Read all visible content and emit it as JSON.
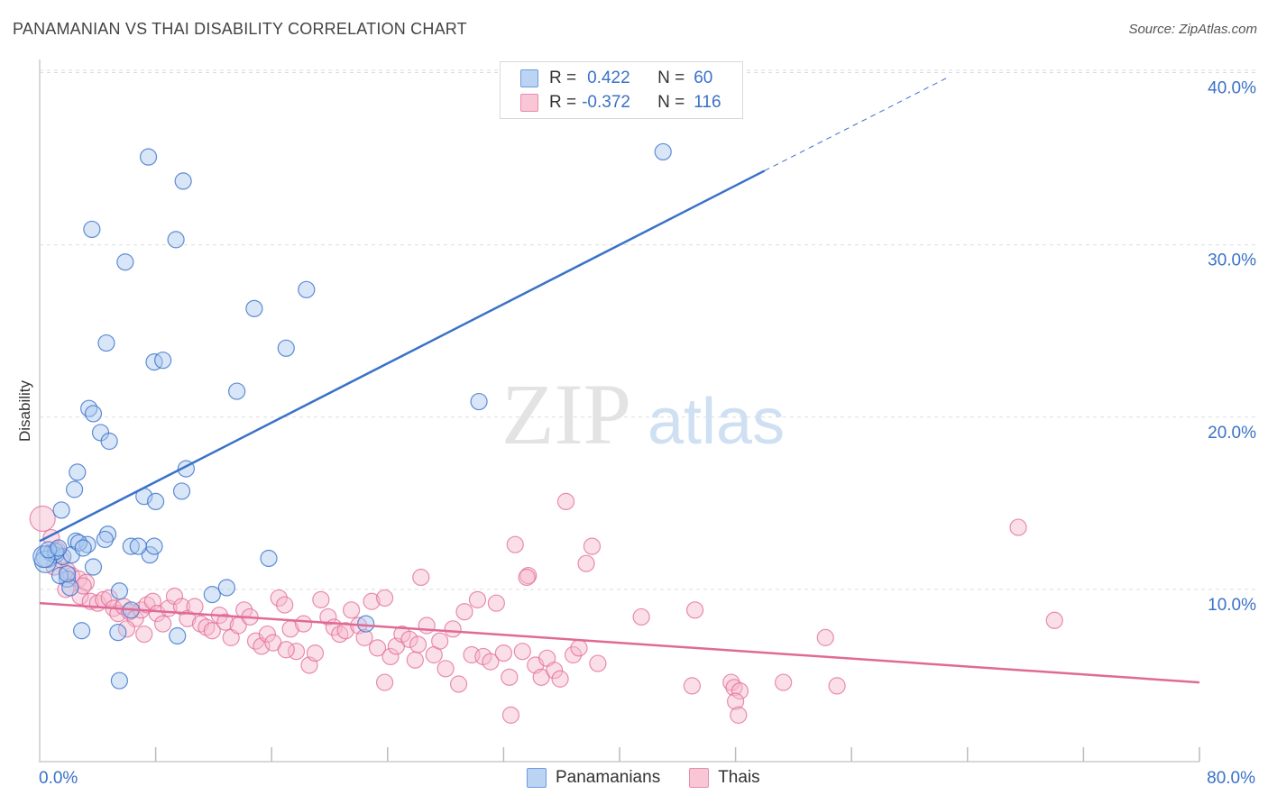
{
  "title": "PANAMANIAN VS THAI DISABILITY CORRELATION CHART",
  "source": "Source: ZipAtlas.com",
  "watermark": {
    "zip": "ZIP",
    "atlas": "atlas"
  },
  "legend": {
    "rows": [
      {
        "r_label": "R =",
        "r_value": "0.422",
        "n_label": "N =",
        "n_value": "60"
      },
      {
        "r_label": "R =",
        "r_value": "-0.372",
        "n_label": "N =",
        "n_value": "116"
      }
    ]
  },
  "bottom_legend": {
    "series1": "Panamanians",
    "series2": "Thais"
  },
  "colors": {
    "blue": "#3a72c8",
    "blue_fill": "#a9c8f0",
    "pink": "#e06a95",
    "pink_fill": "#f6b8cc",
    "grid": "#dddddd"
  },
  "chart_data": {
    "type": "scatter",
    "title": "PANAMANIAN VS THAI DISABILITY CORRELATION CHART",
    "xlabel": "",
    "ylabel": "Disability",
    "xlim": [
      0,
      80
    ],
    "ylim": [
      0,
      40
    ],
    "x_tick_labels": [
      "0.0%",
      "80.0%"
    ],
    "y_ticks": [
      10,
      20,
      30,
      40
    ],
    "y_tick_labels": [
      "10.0%",
      "20.0%",
      "30.0%",
      "40.0%"
    ],
    "grid": true,
    "legend_position": "top-center",
    "series": [
      {
        "name": "Panamanians",
        "color": "#3a72c8",
        "R": 0.422,
        "N": 60,
        "trend": {
          "x": [
            0,
            50
          ],
          "y": [
            12.8,
            34.3
          ],
          "dashed_to": [
            62.6,
            39.7
          ]
        },
        "points": [
          [
            7.5,
            35.1
          ],
          [
            9.9,
            33.7
          ],
          [
            3.6,
            30.9
          ],
          [
            9.4,
            30.3
          ],
          [
            5.9,
            29.0
          ],
          [
            18.4,
            27.4
          ],
          [
            14.8,
            26.3
          ],
          [
            4.6,
            24.3
          ],
          [
            17.0,
            24.0
          ],
          [
            7.9,
            23.2
          ],
          [
            8.5,
            23.3
          ],
          [
            13.6,
            21.5
          ],
          [
            3.4,
            20.5
          ],
          [
            3.7,
            20.2
          ],
          [
            4.2,
            19.1
          ],
          [
            4.8,
            18.6
          ],
          [
            10.1,
            17.0
          ],
          [
            2.6,
            16.8
          ],
          [
            2.4,
            15.8
          ],
          [
            7.2,
            15.4
          ],
          [
            8.0,
            15.1
          ],
          [
            9.8,
            15.7
          ],
          [
            1.5,
            14.6
          ],
          [
            4.7,
            13.2
          ],
          [
            2.5,
            12.8
          ],
          [
            3.3,
            12.6
          ],
          [
            4.5,
            12.9
          ],
          [
            6.3,
            12.5
          ],
          [
            7.6,
            12.0
          ],
          [
            7.9,
            12.5
          ],
          [
            0.5,
            11.9
          ],
          [
            0.8,
            12.1
          ],
          [
            1.1,
            12.0
          ],
          [
            1.6,
            11.9
          ],
          [
            2.2,
            12.0
          ],
          [
            3.7,
            11.3
          ],
          [
            1.9,
            10.6
          ],
          [
            1.4,
            10.8
          ],
          [
            0.4,
            11.6
          ],
          [
            2.1,
            10.1
          ],
          [
            5.5,
            9.9
          ],
          [
            11.9,
            9.7
          ],
          [
            12.9,
            10.1
          ],
          [
            15.8,
            11.8
          ],
          [
            6.3,
            8.8
          ],
          [
            2.9,
            7.6
          ],
          [
            5.4,
            7.5
          ],
          [
            9.5,
            7.3
          ],
          [
            5.5,
            4.7
          ],
          [
            1.1,
            12.2
          ],
          [
            0.3,
            11.9
          ],
          [
            0.6,
            12.3
          ],
          [
            1.3,
            12.4
          ],
          [
            2.7,
            12.7
          ],
          [
            3.0,
            12.4
          ],
          [
            6.8,
            12.5
          ],
          [
            43.0,
            35.4
          ],
          [
            30.3,
            20.9
          ],
          [
            22.5,
            8.0
          ],
          [
            1.9,
            10.9
          ]
        ]
      },
      {
        "name": "Thais",
        "color": "#e06a95",
        "R": -0.372,
        "N": 116,
        "trend": {
          "x": [
            0,
            80
          ],
          "y": [
            9.2,
            4.6
          ]
        },
        "points": [
          [
            0.2,
            14.1
          ],
          [
            0.8,
            13.0
          ],
          [
            1.2,
            12.3
          ],
          [
            1.5,
            11.7
          ],
          [
            1.9,
            11.1
          ],
          [
            2.2,
            10.8
          ],
          [
            2.7,
            10.6
          ],
          [
            3.2,
            10.4
          ],
          [
            1.8,
            10.0
          ],
          [
            2.8,
            9.6
          ],
          [
            3.5,
            9.3
          ],
          [
            4.0,
            9.2
          ],
          [
            4.4,
            9.4
          ],
          [
            4.8,
            9.5
          ],
          [
            5.1,
            8.9
          ],
          [
            5.4,
            8.6
          ],
          [
            5.8,
            9.0
          ],
          [
            6.2,
            8.7
          ],
          [
            6.6,
            8.3
          ],
          [
            7.0,
            8.8
          ],
          [
            7.4,
            9.1
          ],
          [
            7.8,
            9.3
          ],
          [
            8.1,
            8.6
          ],
          [
            8.5,
            8.0
          ],
          [
            8.9,
            8.9
          ],
          [
            9.3,
            9.6
          ],
          [
            9.8,
            9.0
          ],
          [
            10.2,
            8.3
          ],
          [
            10.7,
            9.0
          ],
          [
            11.1,
            8.0
          ],
          [
            11.5,
            7.8
          ],
          [
            11.9,
            7.6
          ],
          [
            12.4,
            8.5
          ],
          [
            12.8,
            8.1
          ],
          [
            13.2,
            7.2
          ],
          [
            13.7,
            7.9
          ],
          [
            14.1,
            8.8
          ],
          [
            14.5,
            8.4
          ],
          [
            14.9,
            7.0
          ],
          [
            15.3,
            6.7
          ],
          [
            15.7,
            7.4
          ],
          [
            16.1,
            6.9
          ],
          [
            16.5,
            9.5
          ],
          [
            16.9,
            9.1
          ],
          [
            17.3,
            7.7
          ],
          [
            17.7,
            6.4
          ],
          [
            18.2,
            8.0
          ],
          [
            18.6,
            5.6
          ],
          [
            19.0,
            6.3
          ],
          [
            19.4,
            9.4
          ],
          [
            19.9,
            8.4
          ],
          [
            20.3,
            7.8
          ],
          [
            20.7,
            7.4
          ],
          [
            21.1,
            7.6
          ],
          [
            21.5,
            8.8
          ],
          [
            22.0,
            7.9
          ],
          [
            22.4,
            7.2
          ],
          [
            22.9,
            9.3
          ],
          [
            23.3,
            6.6
          ],
          [
            23.8,
            9.5
          ],
          [
            24.2,
            6.1
          ],
          [
            24.6,
            6.7
          ],
          [
            25.0,
            7.4
          ],
          [
            25.5,
            7.1
          ],
          [
            25.9,
            5.9
          ],
          [
            26.3,
            10.7
          ],
          [
            26.7,
            7.9
          ],
          [
            27.2,
            6.2
          ],
          [
            27.6,
            7.0
          ],
          [
            28.0,
            5.4
          ],
          [
            28.5,
            7.7
          ],
          [
            28.9,
            4.5
          ],
          [
            29.3,
            8.7
          ],
          [
            29.8,
            6.2
          ],
          [
            30.2,
            9.4
          ],
          [
            30.6,
            6.1
          ],
          [
            31.1,
            5.8
          ],
          [
            31.5,
            9.2
          ],
          [
            32.0,
            6.3
          ],
          [
            32.4,
            4.9
          ],
          [
            32.8,
            12.6
          ],
          [
            33.3,
            6.4
          ],
          [
            33.7,
            10.8
          ],
          [
            34.2,
            5.6
          ],
          [
            34.6,
            4.9
          ],
          [
            35.0,
            6.0
          ],
          [
            35.5,
            5.3
          ],
          [
            35.9,
            4.8
          ],
          [
            36.3,
            15.1
          ],
          [
            36.8,
            6.2
          ],
          [
            37.2,
            6.6
          ],
          [
            37.7,
            11.5
          ],
          [
            38.1,
            12.5
          ],
          [
            38.5,
            5.7
          ],
          [
            41.5,
            8.4
          ],
          [
            45.0,
            4.4
          ],
          [
            45.2,
            8.8
          ],
          [
            47.7,
            4.6
          ],
          [
            47.9,
            4.3
          ],
          [
            48.3,
            4.1
          ],
          [
            48.0,
            3.5
          ],
          [
            48.2,
            2.7
          ],
          [
            51.3,
            4.6
          ],
          [
            54.2,
            7.2
          ],
          [
            55.0,
            4.4
          ],
          [
            67.5,
            13.6
          ],
          [
            70.0,
            8.2
          ],
          [
            32.5,
            2.7
          ],
          [
            23.8,
            4.6
          ],
          [
            17.0,
            6.5
          ],
          [
            3.0,
            10.2
          ],
          [
            6.0,
            7.7
          ],
          [
            7.2,
            7.4
          ],
          [
            1.0,
            11.3
          ],
          [
            33.6,
            10.7
          ],
          [
            26.1,
            6.8
          ]
        ]
      }
    ]
  }
}
